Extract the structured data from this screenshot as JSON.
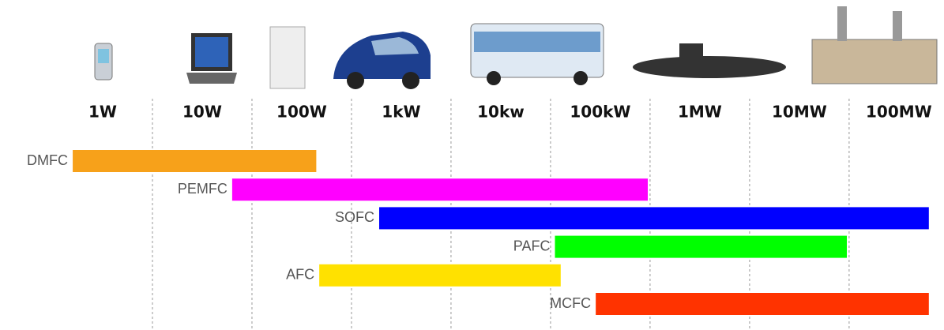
{
  "chart_data": {
    "type": "range-bar",
    "log_x": true,
    "xlim": [
      0.1,
      300000000
    ],
    "xticks": [
      {
        "value": 1,
        "label": "1W"
      },
      {
        "value": 10,
        "label": "10W"
      },
      {
        "value": 100,
        "label": "100W"
      },
      {
        "value": 1000,
        "label": "1kW"
      },
      {
        "value": 10000,
        "label": "10kw"
      },
      {
        "value": 100000,
        "label": "100kW"
      },
      {
        "value": 1000000,
        "label": "1MW"
      },
      {
        "value": 10000000,
        "label": "10MW"
      },
      {
        "value": 100000000,
        "label": "100MW"
      }
    ],
    "grid": true,
    "series": [
      {
        "name": "DMFC",
        "color": "#f7a11a",
        "values": [
          0.5,
          140
        ]
      },
      {
        "name": "PEMFC",
        "color": "#ff00ff",
        "values": [
          20,
          300000
        ]
      },
      {
        "name": "SOFC",
        "color": "#0000ff",
        "values": [
          600,
          200000000
        ]
      },
      {
        "name": "PAFC",
        "color": "#00ff00",
        "values": [
          35000,
          30000000
        ]
      },
      {
        "name": "AFC",
        "color": "#ffe100",
        "values": [
          150,
          40000
        ]
      },
      {
        "name": "MCFC",
        "color": "#ff3300",
        "values": [
          90000,
          200000000
        ]
      }
    ]
  }
}
